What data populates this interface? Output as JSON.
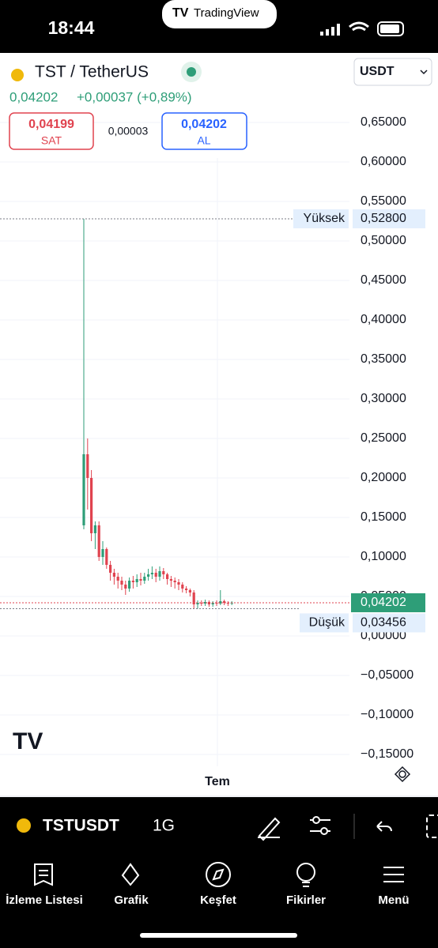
{
  "status_bar": {
    "time": "18:44",
    "app": "TradingView"
  },
  "header": {
    "symbol": "TST / TetherUS",
    "currency": "USDT",
    "price": "0,04202",
    "change": "+0,00037 (+0,89%)",
    "sell": {
      "price": "0,04199",
      "label": "SAT"
    },
    "spread": "0,00003",
    "buy": {
      "price": "0,04202",
      "label": "AL"
    }
  },
  "chart_data": {
    "type": "candlestick",
    "open": [
      0.14,
      0.23,
      0.2,
      0.13,
      0.14,
      0.1,
      0.11,
      0.09,
      0.08,
      0.075,
      0.07,
      0.065,
      0.06,
      0.07,
      0.068,
      0.072,
      0.07,
      0.075,
      0.078,
      0.08,
      0.075,
      0.082,
      0.078,
      0.072,
      0.07,
      0.068,
      0.065,
      0.06,
      0.058,
      0.055,
      0.04,
      0.042,
      0.041,
      0.043,
      0.04,
      0.042,
      0.041,
      0.044,
      0.042,
      0.041
    ],
    "high": [
      0.528,
      0.25,
      0.21,
      0.145,
      0.145,
      0.12,
      0.112,
      0.095,
      0.085,
      0.08,
      0.075,
      0.07,
      0.074,
      0.076,
      0.078,
      0.08,
      0.08,
      0.085,
      0.088,
      0.085,
      0.088,
      0.086,
      0.08,
      0.076,
      0.074,
      0.072,
      0.068,
      0.063,
      0.06,
      0.058,
      0.045,
      0.045,
      0.046,
      0.045,
      0.044,
      0.045,
      0.058,
      0.046,
      0.044,
      0.044
    ],
    "low": [
      0.135,
      0.16,
      0.12,
      0.11,
      0.095,
      0.09,
      0.085,
      0.07,
      0.065,
      0.06,
      0.058,
      0.052,
      0.056,
      0.06,
      0.062,
      0.064,
      0.066,
      0.07,
      0.072,
      0.068,
      0.07,
      0.072,
      0.065,
      0.062,
      0.06,
      0.058,
      0.055,
      0.054,
      0.05,
      0.035,
      0.03456,
      0.038,
      0.038,
      0.037,
      0.037,
      0.038,
      0.039,
      0.039,
      0.038,
      0.039
    ],
    "close": [
      0.23,
      0.2,
      0.13,
      0.14,
      0.1,
      0.11,
      0.09,
      0.08,
      0.075,
      0.07,
      0.065,
      0.06,
      0.07,
      0.068,
      0.072,
      0.07,
      0.075,
      0.078,
      0.08,
      0.075,
      0.082,
      0.078,
      0.072,
      0.07,
      0.068,
      0.065,
      0.06,
      0.058,
      0.055,
      0.04,
      0.042,
      0.041,
      0.043,
      0.04,
      0.042,
      0.041,
      0.044,
      0.042,
      0.041,
      0.04202
    ],
    "up_color": "#2e9e78",
    "down_color": "#e0434f",
    "ylim": [
      -0.165,
      0.705
    ],
    "yticks": [
      {
        "value": 0.65,
        "label": "0,65000"
      },
      {
        "value": 0.6,
        "label": "0,60000"
      },
      {
        "value": 0.55,
        "label": "0,55000"
      },
      {
        "value": 0.5,
        "label": "0,50000"
      },
      {
        "value": 0.45,
        "label": "0,45000"
      },
      {
        "value": 0.4,
        "label": "0,40000"
      },
      {
        "value": 0.35,
        "label": "0,35000"
      },
      {
        "value": 0.3,
        "label": "0,30000"
      },
      {
        "value": 0.25,
        "label": "0,25000"
      },
      {
        "value": 0.2,
        "label": "0,20000"
      },
      {
        "value": 0.15,
        "label": "0,15000"
      },
      {
        "value": 0.1,
        "label": "0,10000"
      },
      {
        "value": 0.05,
        "label": "0,05000"
      },
      {
        "value": 0,
        "label": "0,00000"
      },
      {
        "value": -0.05,
        "label": "−0,05000"
      },
      {
        "value": -0.1,
        "label": "−0,10000"
      },
      {
        "value": -0.15,
        "label": "−0,15000"
      }
    ],
    "grid": true,
    "x_label": "Tem",
    "high_marker": {
      "name": "Yüksek",
      "value": 0.528,
      "label": "0,52800"
    },
    "low_marker": {
      "name": "Düşük",
      "value": 0.03456,
      "label": "0,03456"
    },
    "last_price": {
      "value": 0.04202,
      "label": "0,04202"
    }
  },
  "toolbar": {
    "symbol": "TSTUSDT",
    "interval": "1G"
  },
  "tabs": [
    "İzleme Listesi",
    "Grafik",
    "Keşfet",
    "Fikirler",
    "Menü"
  ]
}
